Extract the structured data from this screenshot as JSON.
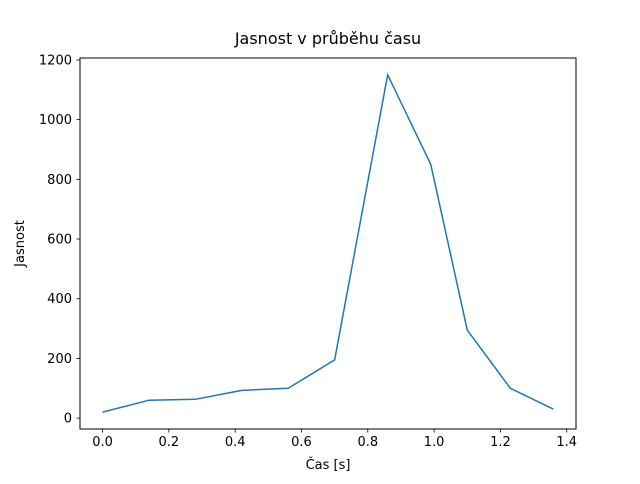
{
  "figure": {
    "background": "#ffffff"
  },
  "chart_data": {
    "type": "line",
    "title": "Jasnost v průběhu času",
    "xlabel": "Čas [s]",
    "ylabel": "Jasnost",
    "x": [
      0.0,
      0.14,
      0.28,
      0.42,
      0.56,
      0.7,
      0.86,
      0.99,
      1.1,
      1.23,
      1.36
    ],
    "y": [
      20,
      60,
      63,
      93,
      100,
      195,
      1150,
      850,
      295,
      100,
      30
    ],
    "line_color": "#1f77b4",
    "line_width": 1.5,
    "xlim": [
      -0.068,
      1.428
    ],
    "ylim": [
      -36.5,
      1206.5
    ],
    "xtick_values": [
      0.0,
      0.2,
      0.4,
      0.6,
      0.8,
      1.0,
      1.2,
      1.4
    ],
    "xtick_labels": [
      "0.0",
      "0.2",
      "0.4",
      "0.6",
      "0.8",
      "1.0",
      "1.2",
      "1.4"
    ],
    "ytick_values": [
      0,
      200,
      400,
      600,
      800,
      1000,
      1200
    ],
    "ytick_labels": [
      "0",
      "200",
      "400",
      "600",
      "800",
      "1000",
      "1200"
    ],
    "grid": false,
    "legend": null,
    "spine_color": "#000000"
  }
}
